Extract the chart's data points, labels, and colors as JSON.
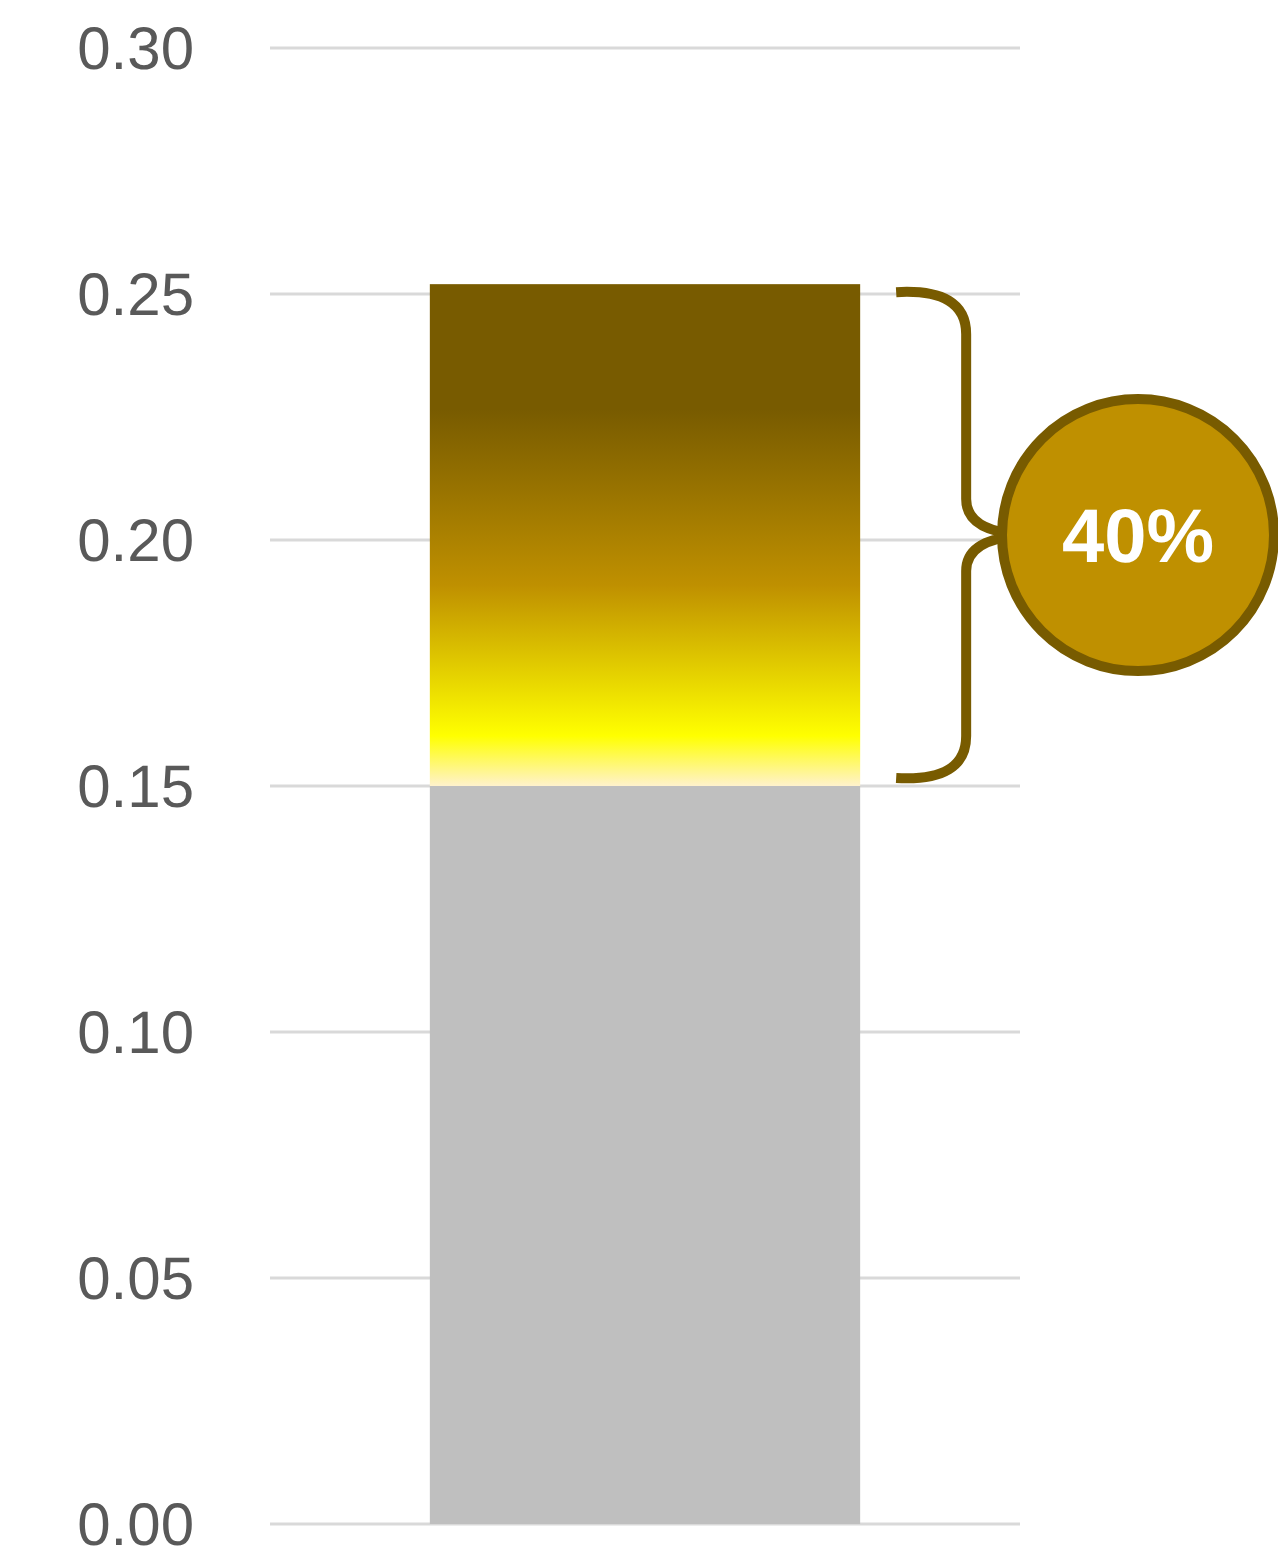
{
  "chart_data": {
    "type": "bar",
    "stacked": true,
    "categories": [
      null
    ],
    "series": [
      {
        "color": "#bfbfbf",
        "values": [
          0.15
        ]
      },
      {
        "color": "#bf9000",
        "values": [
          0.102
        ]
      }
    ],
    "ylim": [
      0,
      0.3
    ],
    "yticks": [
      {
        "value": 0,
        "label": "0.00"
      },
      {
        "value": 0.05,
        "label": "0.05"
      },
      {
        "value": 0.1,
        "label": "0.10"
      },
      {
        "value": 0.15,
        "label": "0.15"
      },
      {
        "value": 0.2,
        "label": "0.20"
      },
      {
        "value": 0.25,
        "label": "0.25"
      },
      {
        "value": 0.3,
        "label": "0.30"
      }
    ],
    "grid": "y",
    "tick_labels": "y",
    "annotations": [
      "40%"
    ]
  }
}
